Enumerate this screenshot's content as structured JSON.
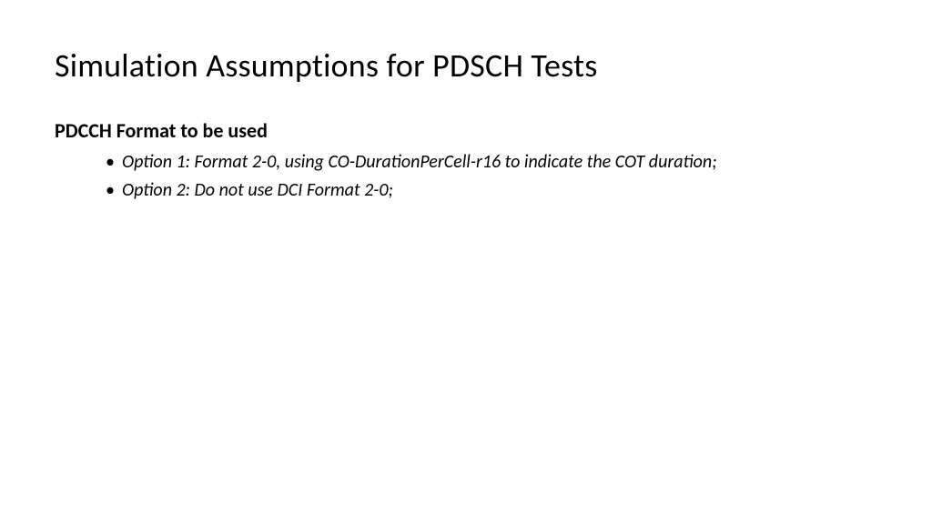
{
  "slide": {
    "title": "Simulation Assumptions for PDSCH Tests",
    "subtitle": "PDCCH Format to be used",
    "bullets": [
      "Option 1: Format 2-0, using CO-DurationPerCell-r16 to indicate the COT duration;",
      "Option 2: Do not use DCI Format 2-0;"
    ]
  },
  "colors": {
    "background": "#ffffff",
    "text": "#000000"
  },
  "typography": {
    "title_fontsize": 36,
    "title_weight": 400,
    "subtitle_fontsize": 22,
    "subtitle_weight": 700,
    "bullet_fontsize": 20,
    "bullet_style": "italic",
    "font_family": "Calibri"
  }
}
